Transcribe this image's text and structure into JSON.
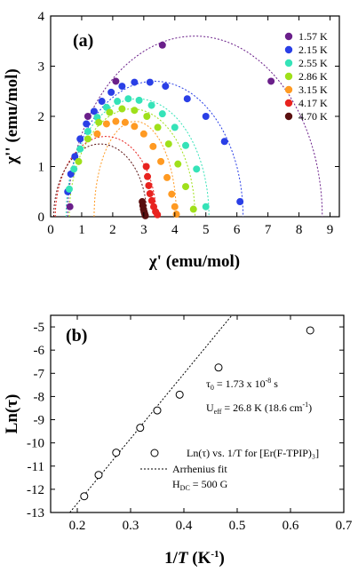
{
  "chart_data": [
    {
      "type": "scatter",
      "panel_label": "(a)",
      "xlabel": "χ' (emu/mol)",
      "ylabel": "χ'' (emu/mol)",
      "xlim": [
        0,
        9.3
      ],
      "ylim": [
        0,
        4
      ],
      "xticks": [
        "0",
        "1",
        "2",
        "3",
        "4",
        "5",
        "6",
        "7",
        "8",
        "9"
      ],
      "yticks": [
        "0",
        "1",
        "2",
        "3",
        "4"
      ],
      "legend_position": "top-right",
      "series": [
        {
          "name": "1.57 K",
          "color": "#6a1f8a",
          "chi_s": 0.55,
          "chi_t": 8.75,
          "peak": 3.6,
          "x": [
            0.62,
            1.2,
            2.1,
            3.6,
            7.1
          ],
          "y": [
            0.2,
            2.0,
            2.7,
            3.42,
            2.7
          ]
        },
        {
          "name": "2.15 K",
          "color": "#2a3fe6",
          "chi_s": 0.5,
          "chi_t": 6.2,
          "peak": 2.7,
          "x": [
            0.55,
            0.65,
            0.78,
            0.95,
            1.15,
            1.4,
            1.65,
            1.95,
            2.3,
            2.7,
            3.2,
            3.7,
            4.4,
            5.0,
            5.6,
            6.1
          ],
          "y": [
            0.5,
            0.85,
            1.2,
            1.55,
            1.85,
            2.1,
            2.3,
            2.48,
            2.6,
            2.68,
            2.68,
            2.6,
            2.35,
            2.0,
            1.5,
            0.3
          ]
        },
        {
          "name": "2.55 K",
          "color": "#35e3b8",
          "chi_s": 0.5,
          "chi_t": 5.1,
          "peak": 2.35,
          "x": [
            0.6,
            0.75,
            0.95,
            1.2,
            1.5,
            1.8,
            2.15,
            2.5,
            2.85,
            3.25,
            3.6,
            4.0,
            4.35,
            4.7,
            5.0
          ],
          "y": [
            0.55,
            0.95,
            1.35,
            1.7,
            1.98,
            2.18,
            2.3,
            2.35,
            2.32,
            2.22,
            2.05,
            1.78,
            1.42,
            0.95,
            0.2
          ]
        },
        {
          "name": "2.86 K",
          "color": "#9fe01a",
          "chi_s": 0.6,
          "chi_t": 4.65,
          "peak": 2.15,
          "x": [
            0.9,
            1.2,
            1.55,
            1.9,
            2.3,
            2.7,
            3.1,
            3.45,
            3.8,
            4.1,
            4.35,
            4.6
          ],
          "y": [
            1.1,
            1.55,
            1.88,
            2.08,
            2.15,
            2.12,
            2.0,
            1.78,
            1.45,
            1.05,
            0.6,
            0.15
          ]
        },
        {
          "name": "3.15 K",
          "color": "#ff9a22",
          "chi_s": 1.4,
          "chi_t": 4.05,
          "peak": 1.9,
          "x": [
            1.5,
            1.8,
            2.1,
            2.4,
            2.7,
            3.0,
            3.3,
            3.55,
            3.75,
            3.9,
            4.0,
            4.05
          ],
          "y": [
            1.65,
            1.85,
            1.9,
            1.88,
            1.8,
            1.65,
            1.4,
            1.1,
            0.78,
            0.45,
            0.2,
            0.05
          ]
        },
        {
          "name": "4.17 K",
          "color": "#e8231f",
          "chi_s": 0.15,
          "chi_t": 3.4,
          "peak": 1.6,
          "x": [
            3.08,
            3.12,
            3.16,
            3.2,
            3.26,
            3.32,
            3.38,
            3.44
          ],
          "y": [
            1.0,
            0.8,
            0.62,
            0.46,
            0.32,
            0.2,
            0.1,
            0.04
          ]
        },
        {
          "name": "4.70 K",
          "color": "#5a1010",
          "chi_s": 0.1,
          "chi_t": 3.1,
          "peak": 1.45,
          "x": [
            2.95,
            2.97,
            2.99,
            3.01,
            3.03,
            3.05
          ],
          "y": [
            0.3,
            0.22,
            0.15,
            0.1,
            0.06,
            0.02
          ]
        }
      ]
    },
    {
      "type": "scatter",
      "panel_label": "(b)",
      "xlabel": "1/T (K⁻¹)",
      "xlabel_main": "1/",
      "xlabel_italic": "T",
      "xlabel_unit": " (K",
      "xlabel_sup": "-1",
      "xlabel_end": ")",
      "ylabel": "Ln(τ)",
      "xlim": [
        0.15,
        0.7
      ],
      "ylim": [
        -13,
        -4.5
      ],
      "xticks": [
        "0.2",
        "0.3",
        "0.4",
        "0.5",
        "0.6",
        "0.7"
      ],
      "yticks": [
        "-5",
        "-6",
        "-7",
        "-8",
        "-9",
        "-10",
        "-11",
        "-12",
        "-13"
      ],
      "series": [
        {
          "name": "Ln(τ) vs. 1/T for [Er(F-TPIP)₃]",
          "marker": "open-circle",
          "x": [
            0.213,
            0.24,
            0.273,
            0.318,
            0.35,
            0.392,
            0.465,
            0.637
          ],
          "y": [
            -12.3,
            -11.38,
            -10.42,
            -9.35,
            -8.6,
            -7.92,
            -6.75,
            -5.15
          ]
        },
        {
          "name": "Arrhenius fit",
          "style": "dotted",
          "x": [
            0.186,
            0.49
          ],
          "y": [
            -13.0,
            -4.5
          ]
        }
      ],
      "annotations": {
        "tau0_prefix": "τ",
        "tau0_sub": "0",
        "tau0_mid": " = 1.73 x 10",
        "tau0_sup": "-8",
        "tau0_unit": " s",
        "ueff_prefix": "U",
        "ueff_sub": "eff",
        "ueff_mid": " = 26.8 K (18.6 cm",
        "ueff_sup": "-1",
        "ueff_end": ")",
        "hdc_prefix": "H",
        "hdc_sub": "DC",
        "hdc_value": " = 500 G",
        "legend_points_label": "Ln(τ) vs. 1/T for [Er(F-TPIP)₃]",
        "legend_fit_label": "Arrhenius fit"
      }
    }
  ]
}
